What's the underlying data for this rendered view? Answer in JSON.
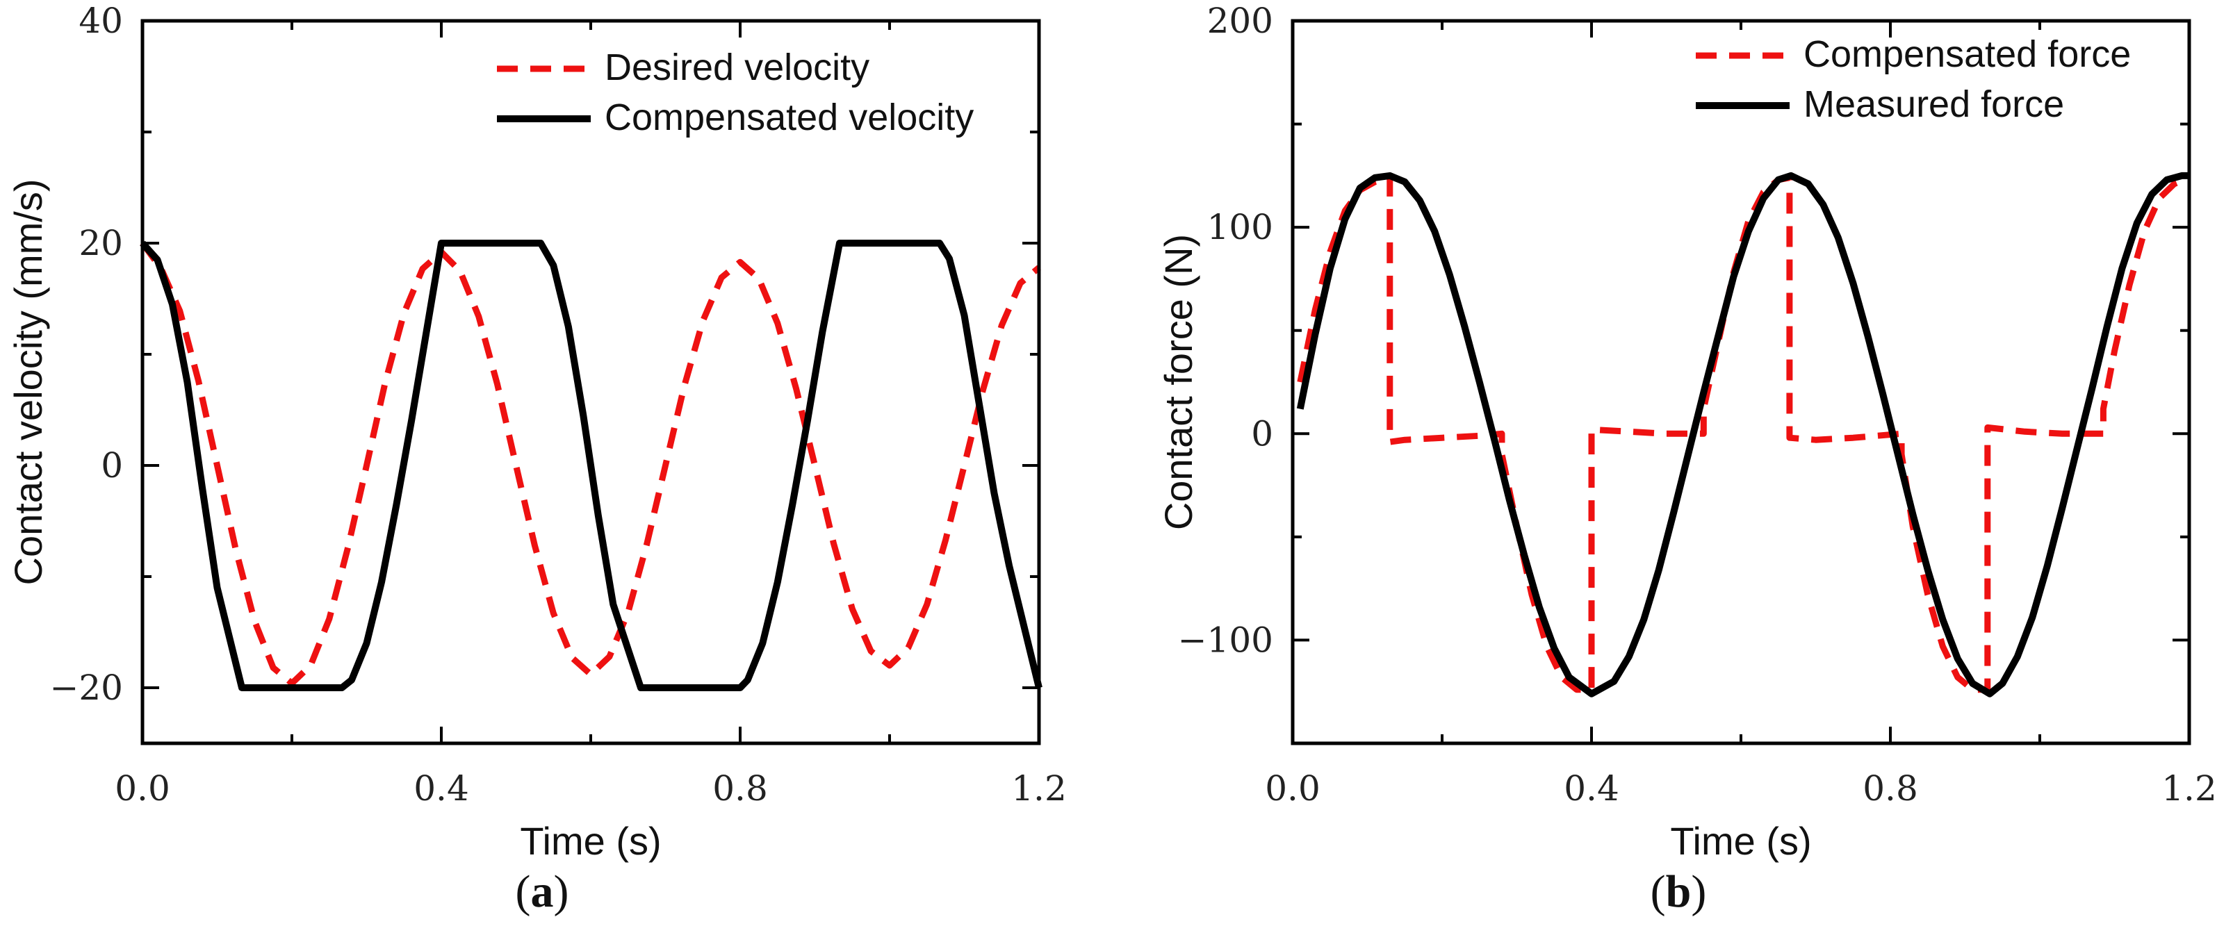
{
  "colors": {
    "red": "#ee1111",
    "black": "#000000",
    "axis": "#000000"
  },
  "chart_data": [
    {
      "id": "a",
      "type": "line",
      "panel_label": "a",
      "xlabel": "Time (s)",
      "ylabel": "Contact velocity (mm/s)",
      "xlim": [
        0,
        1.2
      ],
      "ylim": [
        -25,
        40
      ],
      "xticks": [
        0,
        0.4,
        0.8,
        1.2
      ],
      "xtick_labels": [
        "0.0",
        "0.4",
        "0.8",
        "1.2"
      ],
      "yticks": [
        -20,
        0,
        20,
        40
      ],
      "ytick_labels": [
        "−20",
        "0",
        "20",
        "40"
      ],
      "grid": false,
      "legend_position": "top-right",
      "series": [
        {
          "name": "Desired velocity",
          "style": "dashed",
          "color": "#ee1111",
          "x": [
            0,
            0.025,
            0.05,
            0.075,
            0.1,
            0.125,
            0.15,
            0.175,
            0.2,
            0.225,
            0.25,
            0.275,
            0.3,
            0.325,
            0.35,
            0.375,
            0.4,
            0.425,
            0.45,
            0.475,
            0.5,
            0.525,
            0.55,
            0.575,
            0.6,
            0.625,
            0.65,
            0.675,
            0.7,
            0.725,
            0.75,
            0.775,
            0.8,
            0.825,
            0.85,
            0.875,
            0.9,
            0.925,
            0.95,
            0.975,
            1.0,
            1.025,
            1.05,
            1.075,
            1.1,
            1.125,
            1.15,
            1.175,
            1.2
          ],
          "y": [
            20,
            17.7,
            13.9,
            7.6,
            0,
            -7.6,
            -14.0,
            -18.2,
            -19.6,
            -18.0,
            -13.8,
            -7.4,
            0,
            7.5,
            13.7,
            17.7,
            19.2,
            17.5,
            13.4,
            7.3,
            0,
            -7.2,
            -13.3,
            -17.3,
            -18.8,
            -17.2,
            -13.2,
            -7.1,
            0,
            7.1,
            13.0,
            16.9,
            18.3,
            16.8,
            12.8,
            6.9,
            0,
            -7.0,
            -12.9,
            -16.7,
            -18.0,
            -16.4,
            -12.5,
            -6.7,
            0,
            6.8,
            12.6,
            16.4,
            17.8
          ]
        },
        {
          "name": "Compensated velocity",
          "style": "solid",
          "color": "#000000",
          "x": [
            0,
            0.02,
            0.04,
            0.06,
            0.08,
            0.1,
            0.133,
            0.15,
            0.2,
            0.25,
            0.267,
            0.28,
            0.3,
            0.32,
            0.34,
            0.36,
            0.38,
            0.4,
            0.45,
            0.5,
            0.533,
            0.55,
            0.57,
            0.59,
            0.61,
            0.63,
            0.667,
            0.7,
            0.75,
            0.8,
            0.81,
            0.83,
            0.85,
            0.87,
            0.89,
            0.91,
            0.933,
            0.95,
            1.0,
            1.05,
            1.067,
            1.08,
            1.1,
            1.12,
            1.14,
            1.16,
            1.18,
            1.2
          ],
          "y": [
            20,
            18.5,
            14.5,
            7.5,
            -2,
            -11,
            -20,
            -20,
            -20,
            -20,
            -20,
            -19.3,
            -16,
            -10.5,
            -3.5,
            4,
            12,
            20,
            20,
            20,
            20,
            18,
            12.5,
            4.5,
            -4.5,
            -12.5,
            -20,
            -20,
            -20,
            -20,
            -19.3,
            -16,
            -10.5,
            -3.5,
            4,
            12,
            20,
            20,
            20,
            20,
            20,
            18.6,
            13.5,
            5.5,
            -2.5,
            -9,
            -14.5,
            -20
          ]
        }
      ]
    },
    {
      "id": "b",
      "type": "line",
      "panel_label": "b",
      "xlabel": "Time (s)",
      "ylabel": "Contact force (N)",
      "xlim": [
        0,
        1.2
      ],
      "ylim": [
        -150,
        200
      ],
      "xticks": [
        0,
        0.4,
        0.8,
        1.2
      ],
      "xtick_labels": [
        "0.0",
        "0.4",
        "0.8",
        "1.2"
      ],
      "yticks": [
        -100,
        0,
        100,
        200
      ],
      "ytick_labels": [
        "−100",
        "0",
        "100",
        "200"
      ],
      "grid": false,
      "legend_position": "top-right",
      "series": [
        {
          "name": "Compensated force",
          "style": "dashed",
          "color": "#ee1111",
          "x": [
            0.01,
            0.03,
            0.05,
            0.07,
            0.09,
            0.11,
            0.13,
            0.13,
            0.15,
            0.2,
            0.25,
            0.28,
            0.28,
            0.3,
            0.32,
            0.34,
            0.36,
            0.38,
            0.4,
            0.4,
            0.45,
            0.5,
            0.55,
            0.55,
            0.57,
            0.59,
            0.61,
            0.63,
            0.65,
            0.665,
            0.665,
            0.7,
            0.75,
            0.815,
            0.815,
            0.83,
            0.85,
            0.87,
            0.89,
            0.91,
            0.93,
            0.93,
            0.98,
            1.03,
            1.085,
            1.085,
            1.1,
            1.12,
            1.14,
            1.16,
            1.18,
            1.2
          ],
          "y": [
            25,
            60,
            88,
            108,
            118,
            122,
            124,
            -4,
            -3,
            -2,
            -1,
            0,
            -10,
            -45,
            -78,
            -103,
            -118,
            -124,
            -124,
            2,
            1,
            0,
            0,
            12,
            45,
            78,
            103,
            117,
            123,
            124,
            -2,
            -3,
            -2,
            0,
            -10,
            -45,
            -78,
            -103,
            -118,
            -124,
            -124,
            3,
            1,
            0,
            0,
            12,
            40,
            72,
            98,
            114,
            121,
            124
          ]
        },
        {
          "name": "Measured force",
          "style": "solid",
          "color": "#000000",
          "x": [
            0.01,
            0.03,
            0.05,
            0.07,
            0.09,
            0.11,
            0.13,
            0.15,
            0.17,
            0.19,
            0.21,
            0.23,
            0.25,
            0.27,
            0.29,
            0.31,
            0.33,
            0.35,
            0.37,
            0.4,
            0.43,
            0.45,
            0.47,
            0.49,
            0.51,
            0.53,
            0.55,
            0.57,
            0.59,
            0.61,
            0.63,
            0.65,
            0.667,
            0.69,
            0.71,
            0.73,
            0.75,
            0.77,
            0.79,
            0.81,
            0.83,
            0.85,
            0.87,
            0.89,
            0.91,
            0.933,
            0.95,
            0.97,
            0.99,
            1.01,
            1.03,
            1.05,
            1.07,
            1.09,
            1.11,
            1.13,
            1.15,
            1.17,
            1.19,
            1.2
          ],
          "y": [
            12,
            48,
            80,
            104,
            119,
            124,
            125,
            122,
            113,
            98,
            77,
            52,
            25,
            -3,
            -32,
            -59,
            -84,
            -104,
            -118,
            -126,
            -120,
            -108,
            -90,
            -66,
            -38,
            -9,
            20,
            48,
            76,
            98,
            114,
            123,
            125,
            121,
            111,
            95,
            73,
            47,
            19,
            -10,
            -39,
            -66,
            -90,
            -109,
            -121,
            -126,
            -121,
            -108,
            -89,
            -64,
            -36,
            -7,
            22,
            52,
            80,
            102,
            116,
            123,
            125,
            125
          ]
        }
      ]
    }
  ]
}
